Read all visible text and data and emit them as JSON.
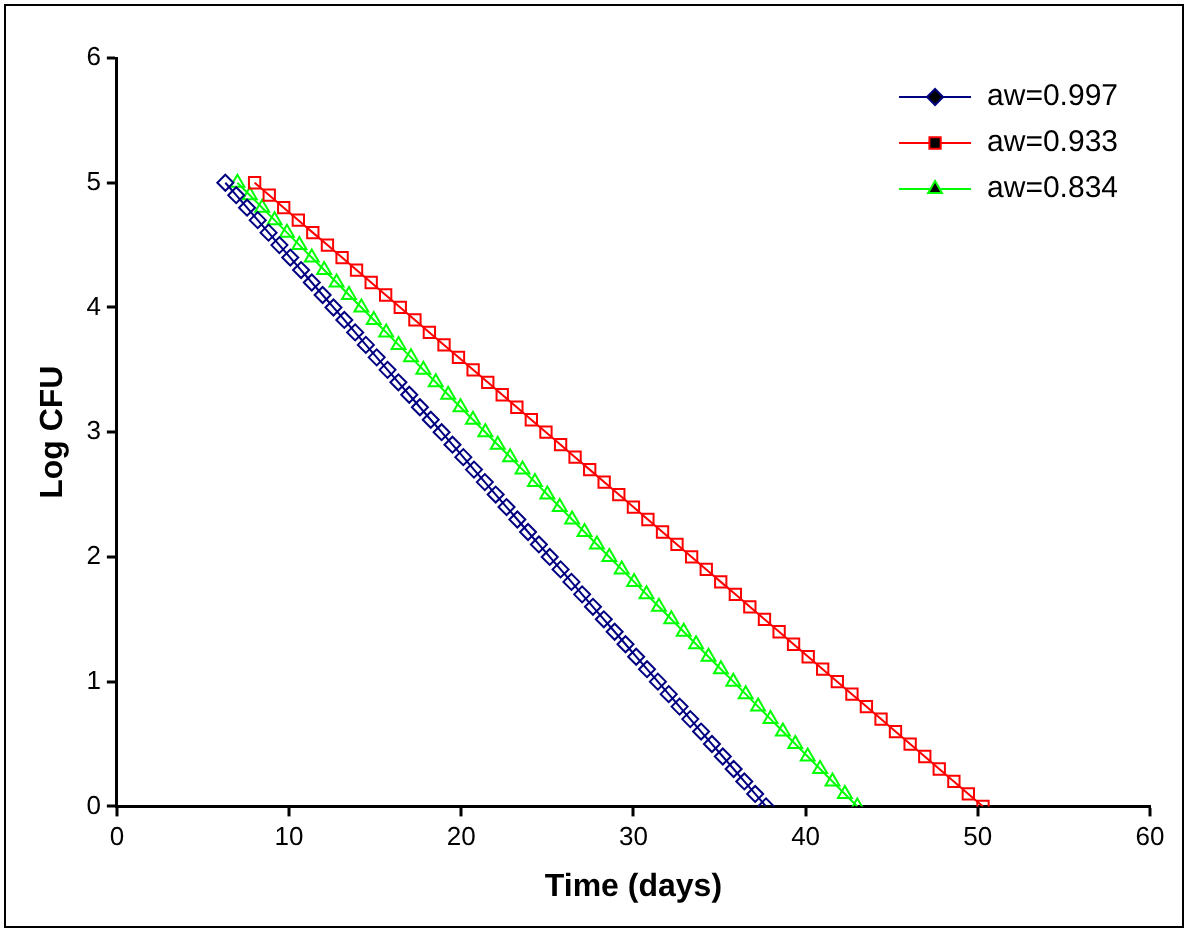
{
  "chart_data": {
    "type": "line",
    "xlabel": "Time (days)",
    "ylabel": "Log CFU",
    "xlim": [
      0,
      60
    ],
    "xticks": [
      0,
      10,
      20,
      30,
      40,
      50,
      60
    ],
    "ylim": [
      0,
      6
    ],
    "yticks": [
      0,
      1,
      2,
      3,
      4,
      5,
      6
    ],
    "grid": false,
    "legend": "top right",
    "line_style": "solid",
    "series": [
      {
        "name": "aw=0.997",
        "color": "#000080",
        "marker": "diamond",
        "x": [
          6.3,
          6.93,
          7.56,
          8.18,
          8.81,
          9.44,
          10.07,
          10.7,
          11.32,
          11.95,
          12.58,
          13.21,
          13.84,
          14.46,
          15.09,
          15.72,
          16.35,
          16.98,
          17.6,
          18.23,
          18.86,
          19.49,
          20.12,
          20.74,
          21.37,
          22,
          22.63,
          23.26,
          23.88,
          24.51,
          25.14,
          25.77,
          26.4,
          27.02,
          27.65,
          28.28,
          28.91,
          29.54,
          30.16,
          30.79,
          31.42,
          32.05,
          32.68,
          33.3,
          33.93,
          34.56,
          35.19,
          35.82,
          36.44,
          37.07,
          37.7
        ],
        "values": [
          5,
          4.9,
          4.8,
          4.7,
          4.6,
          4.5,
          4.4,
          4.3,
          4.2,
          4.1,
          4,
          3.9,
          3.8,
          3.7,
          3.6,
          3.5,
          3.4,
          3.3,
          3.2,
          3.1,
          3,
          2.9,
          2.8,
          2.7,
          2.6,
          2.5,
          2.4,
          2.3,
          2.2,
          2.1,
          2,
          1.9,
          1.8,
          1.7,
          1.6,
          1.5,
          1.4,
          1.3,
          1.2,
          1.1,
          1,
          0.9,
          0.8,
          0.7,
          0.6,
          0.5,
          0.4,
          0.3,
          0.2,
          0.1,
          0
        ]
      },
      {
        "name": "aw=0.933",
        "color": "#ff0000",
        "marker": "square",
        "x": [
          8,
          8.85,
          9.69,
          10.54,
          11.38,
          12.23,
          13.08,
          13.92,
          14.77,
          15.61,
          16.46,
          17.31,
          18.15,
          19,
          19.84,
          20.69,
          21.54,
          22.38,
          23.23,
          24.07,
          24.92,
          25.77,
          26.61,
          27.46,
          28.3,
          29.15,
          30,
          30.84,
          31.69,
          32.53,
          33.38,
          34.23,
          35.07,
          35.92,
          36.76,
          37.61,
          38.46,
          39.3,
          40.15,
          40.99,
          41.84,
          42.69,
          43.53,
          44.38,
          45.22,
          46.07,
          46.92,
          47.76,
          48.61,
          49.45,
          50.3
        ],
        "values": [
          5,
          4.9,
          4.8,
          4.7,
          4.6,
          4.5,
          4.4,
          4.3,
          4.2,
          4.1,
          4,
          3.9,
          3.8,
          3.7,
          3.6,
          3.5,
          3.4,
          3.3,
          3.2,
          3.1,
          3,
          2.9,
          2.8,
          2.7,
          2.6,
          2.5,
          2.4,
          2.3,
          2.2,
          2.1,
          2,
          1.9,
          1.8,
          1.7,
          1.6,
          1.5,
          1.4,
          1.3,
          1.2,
          1.1,
          1,
          0.9,
          0.8,
          0.7,
          0.6,
          0.5,
          0.4,
          0.3,
          0.2,
          0.1,
          0
        ]
      },
      {
        "name": "aw=0.834",
        "color": "#00ff00",
        "marker": "triangle",
        "x": [
          7,
          7.72,
          8.44,
          9.16,
          9.88,
          10.6,
          11.32,
          12.04,
          12.76,
          13.48,
          14.2,
          14.92,
          15.64,
          16.36,
          17.08,
          17.8,
          18.52,
          19.24,
          19.96,
          20.68,
          21.4,
          22.12,
          22.84,
          23.56,
          24.28,
          25,
          25.72,
          26.44,
          27.16,
          27.88,
          28.6,
          29.32,
          30.04,
          30.76,
          31.48,
          32.2,
          32.92,
          33.64,
          34.36,
          35.08,
          35.8,
          36.52,
          37.24,
          37.96,
          38.68,
          39.4,
          40.12,
          40.84,
          41.56,
          42.28,
          43
        ],
        "values": [
          5,
          4.9,
          4.8,
          4.7,
          4.6,
          4.5,
          4.4,
          4.3,
          4.2,
          4.1,
          4,
          3.9,
          3.8,
          3.7,
          3.6,
          3.5,
          3.4,
          3.3,
          3.2,
          3.1,
          3,
          2.9,
          2.8,
          2.7,
          2.6,
          2.5,
          2.4,
          2.3,
          2.2,
          2.1,
          2,
          1.9,
          1.8,
          1.7,
          1.6,
          1.5,
          1.4,
          1.3,
          1.2,
          1.1,
          1,
          0.9,
          0.8,
          0.7,
          0.6,
          0.5,
          0.4,
          0.3,
          0.2,
          0.1,
          0
        ]
      }
    ]
  }
}
